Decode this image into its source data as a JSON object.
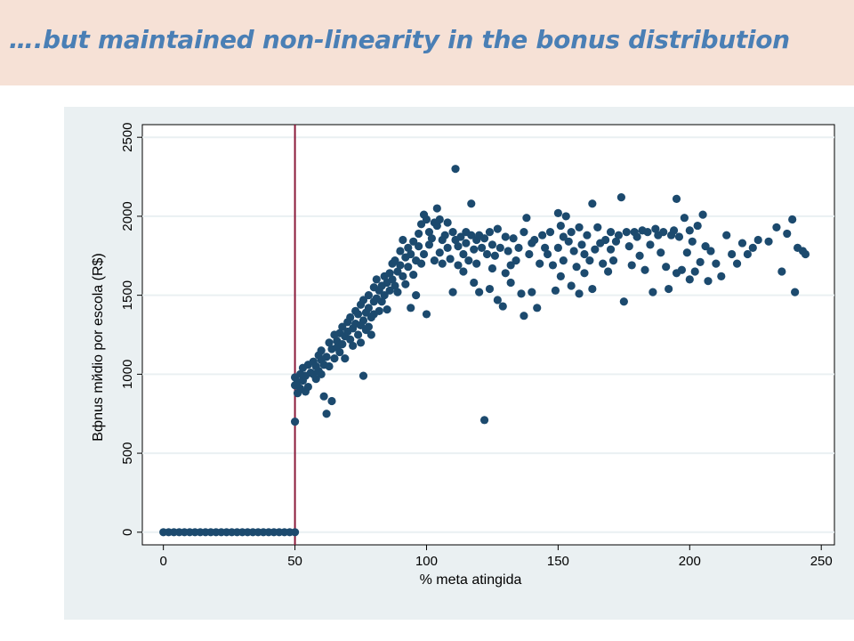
{
  "slide": {
    "title": "….but maintained non-linearity in the bonus  distribution"
  },
  "colors": {
    "title_bar": "#f6e1d6",
    "title_text": "#4a7fb5",
    "frame": "#eaf0f2",
    "marker": "#1c4a6e",
    "threshold_line": "#8b1a3a",
    "grid": "#eaf0f2"
  },
  "chart_data": {
    "type": "scatter",
    "xlabel": "% meta atingida",
    "ylabel": "Bфnus mйdio por escola (R$)",
    "xlim": [
      -8,
      255
    ],
    "ylim": [
      -80,
      2580
    ],
    "xticks": [
      0,
      50,
      100,
      150,
      200,
      250
    ],
    "yticks": [
      0,
      500,
      1000,
      1500,
      2000,
      2500
    ],
    "grid": "horizontal",
    "reference_lines": [
      {
        "axis": "x",
        "value": 50
      }
    ],
    "series": [
      {
        "points": [
          [
            0,
            0
          ],
          [
            2,
            0
          ],
          [
            4,
            0
          ],
          [
            6,
            0
          ],
          [
            8,
            0
          ],
          [
            10,
            0
          ],
          [
            12,
            0
          ],
          [
            14,
            0
          ],
          [
            16,
            0
          ],
          [
            18,
            0
          ],
          [
            20,
            0
          ],
          [
            22,
            0
          ],
          [
            24,
            0
          ],
          [
            26,
            0
          ],
          [
            28,
            0
          ],
          [
            30,
            0
          ],
          [
            32,
            0
          ],
          [
            34,
            0
          ],
          [
            36,
            0
          ],
          [
            38,
            0
          ],
          [
            40,
            0
          ],
          [
            42,
            0
          ],
          [
            44,
            0
          ],
          [
            46,
            0
          ],
          [
            48,
            0
          ],
          [
            50,
            0
          ],
          [
            50,
            700
          ],
          [
            50,
            980
          ],
          [
            50,
            930
          ],
          [
            51,
            950
          ],
          [
            51,
            880
          ],
          [
            52,
            1000
          ],
          [
            52,
            910
          ],
          [
            53,
            1040
          ],
          [
            53,
            960
          ],
          [
            54,
            990
          ],
          [
            54,
            890
          ],
          [
            55,
            1060
          ],
          [
            55,
            920
          ],
          [
            56,
            1010
          ],
          [
            57,
            1080
          ],
          [
            57,
            1000
          ],
          [
            58,
            1050
          ],
          [
            58,
            970
          ],
          [
            59,
            1120
          ],
          [
            59,
            1020
          ],
          [
            60,
            1090
          ],
          [
            60,
            1150
          ],
          [
            60,
            1000
          ],
          [
            61,
            860
          ],
          [
            61,
            1060
          ],
          [
            62,
            750
          ],
          [
            62,
            1110
          ],
          [
            63,
            1200
          ],
          [
            63,
            1050
          ],
          [
            64,
            1160
          ],
          [
            64,
            830
          ],
          [
            65,
            1250
          ],
          [
            65,
            1100
          ],
          [
            66,
            1210
          ],
          [
            66,
            1170
          ],
          [
            67,
            1260
          ],
          [
            67,
            1140
          ],
          [
            68,
            1300
          ],
          [
            68,
            1190
          ],
          [
            69,
            1240
          ],
          [
            69,
            1100
          ],
          [
            70,
            1330
          ],
          [
            70,
            1270
          ],
          [
            71,
            1220
          ],
          [
            71,
            1360
          ],
          [
            72,
            1290
          ],
          [
            72,
            1180
          ],
          [
            73,
            1400
          ],
          [
            73,
            1320
          ],
          [
            74,
            1250
          ],
          [
            74,
            1380
          ],
          [
            75,
            1310
          ],
          [
            75,
            1440
          ],
          [
            75,
            1200
          ],
          [
            76,
            1340
          ],
          [
            76,
            1470
          ],
          [
            76,
            990
          ],
          [
            77,
            1280
          ],
          [
            77,
            1390
          ],
          [
            78,
            1420
          ],
          [
            78,
            1300
          ],
          [
            78,
            1500
          ],
          [
            79,
            1360
          ],
          [
            79,
            1250
          ],
          [
            80,
            1460
          ],
          [
            80,
            1550
          ],
          [
            80,
            1380
          ],
          [
            81,
            1480
          ],
          [
            81,
            1600
          ],
          [
            82,
            1530
          ],
          [
            82,
            1400
          ],
          [
            83,
            1560
          ],
          [
            83,
            1460
          ],
          [
            84,
            1500
          ],
          [
            84,
            1620
          ],
          [
            85,
            1580
          ],
          [
            85,
            1410
          ],
          [
            86,
            1640
          ],
          [
            86,
            1530
          ],
          [
            87,
            1700
          ],
          [
            87,
            1600
          ],
          [
            88,
            1560
          ],
          [
            88,
            1720
          ],
          [
            89,
            1650
          ],
          [
            89,
            1520
          ],
          [
            90,
            1780
          ],
          [
            90,
            1690
          ],
          [
            91,
            1620
          ],
          [
            91,
            1850
          ],
          [
            92,
            1740
          ],
          [
            92,
            1570
          ],
          [
            93,
            1800
          ],
          [
            93,
            1680
          ],
          [
            94,
            1760
          ],
          [
            94,
            1420
          ],
          [
            95,
            1840
          ],
          [
            95,
            1630
          ],
          [
            96,
            1720
          ],
          [
            96,
            1500
          ],
          [
            97,
            1890
          ],
          [
            97,
            1810
          ],
          [
            98,
            1700
          ],
          [
            98,
            1950
          ],
          [
            99,
            2010
          ],
          [
            99,
            1760
          ],
          [
            100,
            1980
          ],
          [
            100,
            1380
          ],
          [
            101,
            1900
          ],
          [
            101,
            1820
          ],
          [
            102,
            1860
          ],
          [
            103,
            1960
          ],
          [
            103,
            1720
          ],
          [
            104,
            2050
          ],
          [
            104,
            1940
          ],
          [
            105,
            1770
          ],
          [
            105,
            1980
          ],
          [
            106,
            1850
          ],
          [
            106,
            1700
          ],
          [
            107,
            1880
          ],
          [
            108,
            1960
          ],
          [
            108,
            1800
          ],
          [
            109,
            1730
          ],
          [
            110,
            1900
          ],
          [
            110,
            1520
          ],
          [
            111,
            2300
          ],
          [
            111,
            1850
          ],
          [
            112,
            1810
          ],
          [
            112,
            1690
          ],
          [
            113,
            1870
          ],
          [
            114,
            1760
          ],
          [
            114,
            1650
          ],
          [
            115,
            1900
          ],
          [
            115,
            1830
          ],
          [
            116,
            1720
          ],
          [
            117,
            1880
          ],
          [
            117,
            2080
          ],
          [
            118,
            1580
          ],
          [
            118,
            1790
          ],
          [
            119,
            1850
          ],
          [
            119,
            1700
          ],
          [
            120,
            1880
          ],
          [
            120,
            1520
          ],
          [
            121,
            1800
          ],
          [
            122,
            710
          ],
          [
            122,
            1860
          ],
          [
            123,
            1760
          ],
          [
            124,
            1540
          ],
          [
            124,
            1900
          ],
          [
            125,
            1670
          ],
          [
            125,
            1820
          ],
          [
            126,
            1750
          ],
          [
            127,
            1920
          ],
          [
            127,
            1470
          ],
          [
            128,
            1800
          ],
          [
            129,
            1430
          ],
          [
            130,
            1870
          ],
          [
            130,
            1640
          ],
          [
            131,
            1780
          ],
          [
            132,
            1690
          ],
          [
            132,
            1580
          ],
          [
            133,
            1860
          ],
          [
            134,
            1720
          ],
          [
            135,
            1800
          ],
          [
            136,
            1510
          ],
          [
            137,
            1900
          ],
          [
            137,
            1370
          ],
          [
            138,
            1990
          ],
          [
            139,
            1760
          ],
          [
            140,
            1830
          ],
          [
            140,
            1520
          ],
          [
            141,
            1850
          ],
          [
            142,
            1420
          ],
          [
            143,
            1700
          ],
          [
            144,
            1880
          ],
          [
            145,
            1800
          ],
          [
            146,
            1760
          ],
          [
            147,
            1900
          ],
          [
            148,
            1690
          ],
          [
            149,
            1530
          ],
          [
            150,
            2020
          ],
          [
            150,
            1800
          ],
          [
            151,
            1940
          ],
          [
            151,
            1620
          ],
          [
            152,
            1870
          ],
          [
            152,
            1720
          ],
          [
            153,
            2000
          ],
          [
            154,
            1840
          ],
          [
            155,
            1900
          ],
          [
            155,
            1560
          ],
          [
            156,
            1780
          ],
          [
            157,
            1680
          ],
          [
            158,
            1930
          ],
          [
            158,
            1510
          ],
          [
            159,
            1820
          ],
          [
            160,
            1760
          ],
          [
            160,
            1640
          ],
          [
            161,
            1880
          ],
          [
            162,
            1720
          ],
          [
            163,
            2080
          ],
          [
            163,
            1540
          ],
          [
            164,
            1790
          ],
          [
            165,
            1930
          ],
          [
            166,
            1830
          ],
          [
            167,
            1700
          ],
          [
            168,
            1850
          ],
          [
            169,
            1650
          ],
          [
            170,
            1900
          ],
          [
            170,
            1790
          ],
          [
            171,
            1720
          ],
          [
            172,
            1840
          ],
          [
            173,
            1880
          ],
          [
            174,
            2120
          ],
          [
            175,
            1460
          ],
          [
            176,
            1900
          ],
          [
            177,
            1810
          ],
          [
            178,
            1690
          ],
          [
            179,
            1900
          ],
          [
            180,
            1870
          ],
          [
            181,
            1750
          ],
          [
            182,
            1910
          ],
          [
            183,
            1660
          ],
          [
            184,
            1900
          ],
          [
            185,
            1820
          ],
          [
            186,
            1520
          ],
          [
            187,
            1920
          ],
          [
            188,
            1880
          ],
          [
            189,
            1770
          ],
          [
            190,
            1900
          ],
          [
            191,
            1680
          ],
          [
            192,
            1540
          ],
          [
            193,
            1880
          ],
          [
            194,
            1910
          ],
          [
            195,
            2110
          ],
          [
            195,
            1640
          ],
          [
            196,
            1870
          ],
          [
            197,
            1660
          ],
          [
            198,
            1990
          ],
          [
            199,
            1770
          ],
          [
            200,
            1910
          ],
          [
            200,
            1600
          ],
          [
            201,
            1840
          ],
          [
            202,
            1650
          ],
          [
            203,
            1940
          ],
          [
            204,
            1710
          ],
          [
            205,
            2010
          ],
          [
            206,
            1810
          ],
          [
            207,
            1590
          ],
          [
            208,
            1780
          ],
          [
            210,
            1700
          ],
          [
            212,
            1620
          ],
          [
            214,
            1880
          ],
          [
            216,
            1760
          ],
          [
            218,
            1700
          ],
          [
            220,
            1830
          ],
          [
            222,
            1760
          ],
          [
            224,
            1800
          ],
          [
            226,
            1850
          ],
          [
            230,
            1840
          ],
          [
            233,
            1930
          ],
          [
            235,
            1650
          ],
          [
            237,
            1890
          ],
          [
            239,
            1980
          ],
          [
            240,
            1520
          ],
          [
            241,
            1800
          ],
          [
            243,
            1780
          ],
          [
            244,
            1760
          ]
        ]
      }
    ]
  }
}
